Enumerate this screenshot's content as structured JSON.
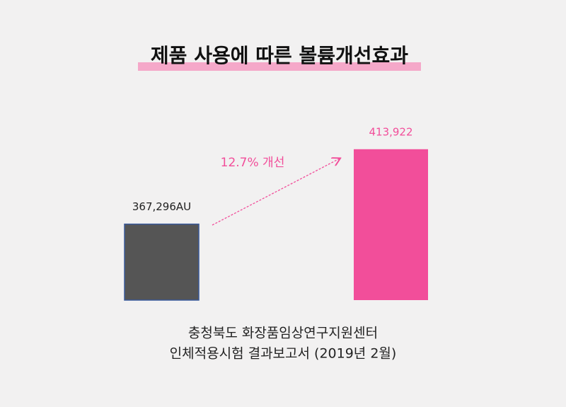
{
  "chart_data": {
    "type": "bar",
    "title": "제품 사용에 따른 볼륨개선효과",
    "categories": [
      null,
      null
    ],
    "values": [
      367296,
      413922
    ],
    "value_labels": [
      "367,296AU",
      "413,922"
    ],
    "colors": [
      "#555555",
      "#f24e9a"
    ],
    "label_colors": [
      "#222222",
      "#f24e9a"
    ],
    "ylim": [
      320000,
      420000
    ],
    "annotation": "12.7% 개선",
    "footnote": [
      "충청북도 화장품임상연구지원센터",
      "인체적용시험 결과보고서 (2019년 2월)"
    ]
  }
}
